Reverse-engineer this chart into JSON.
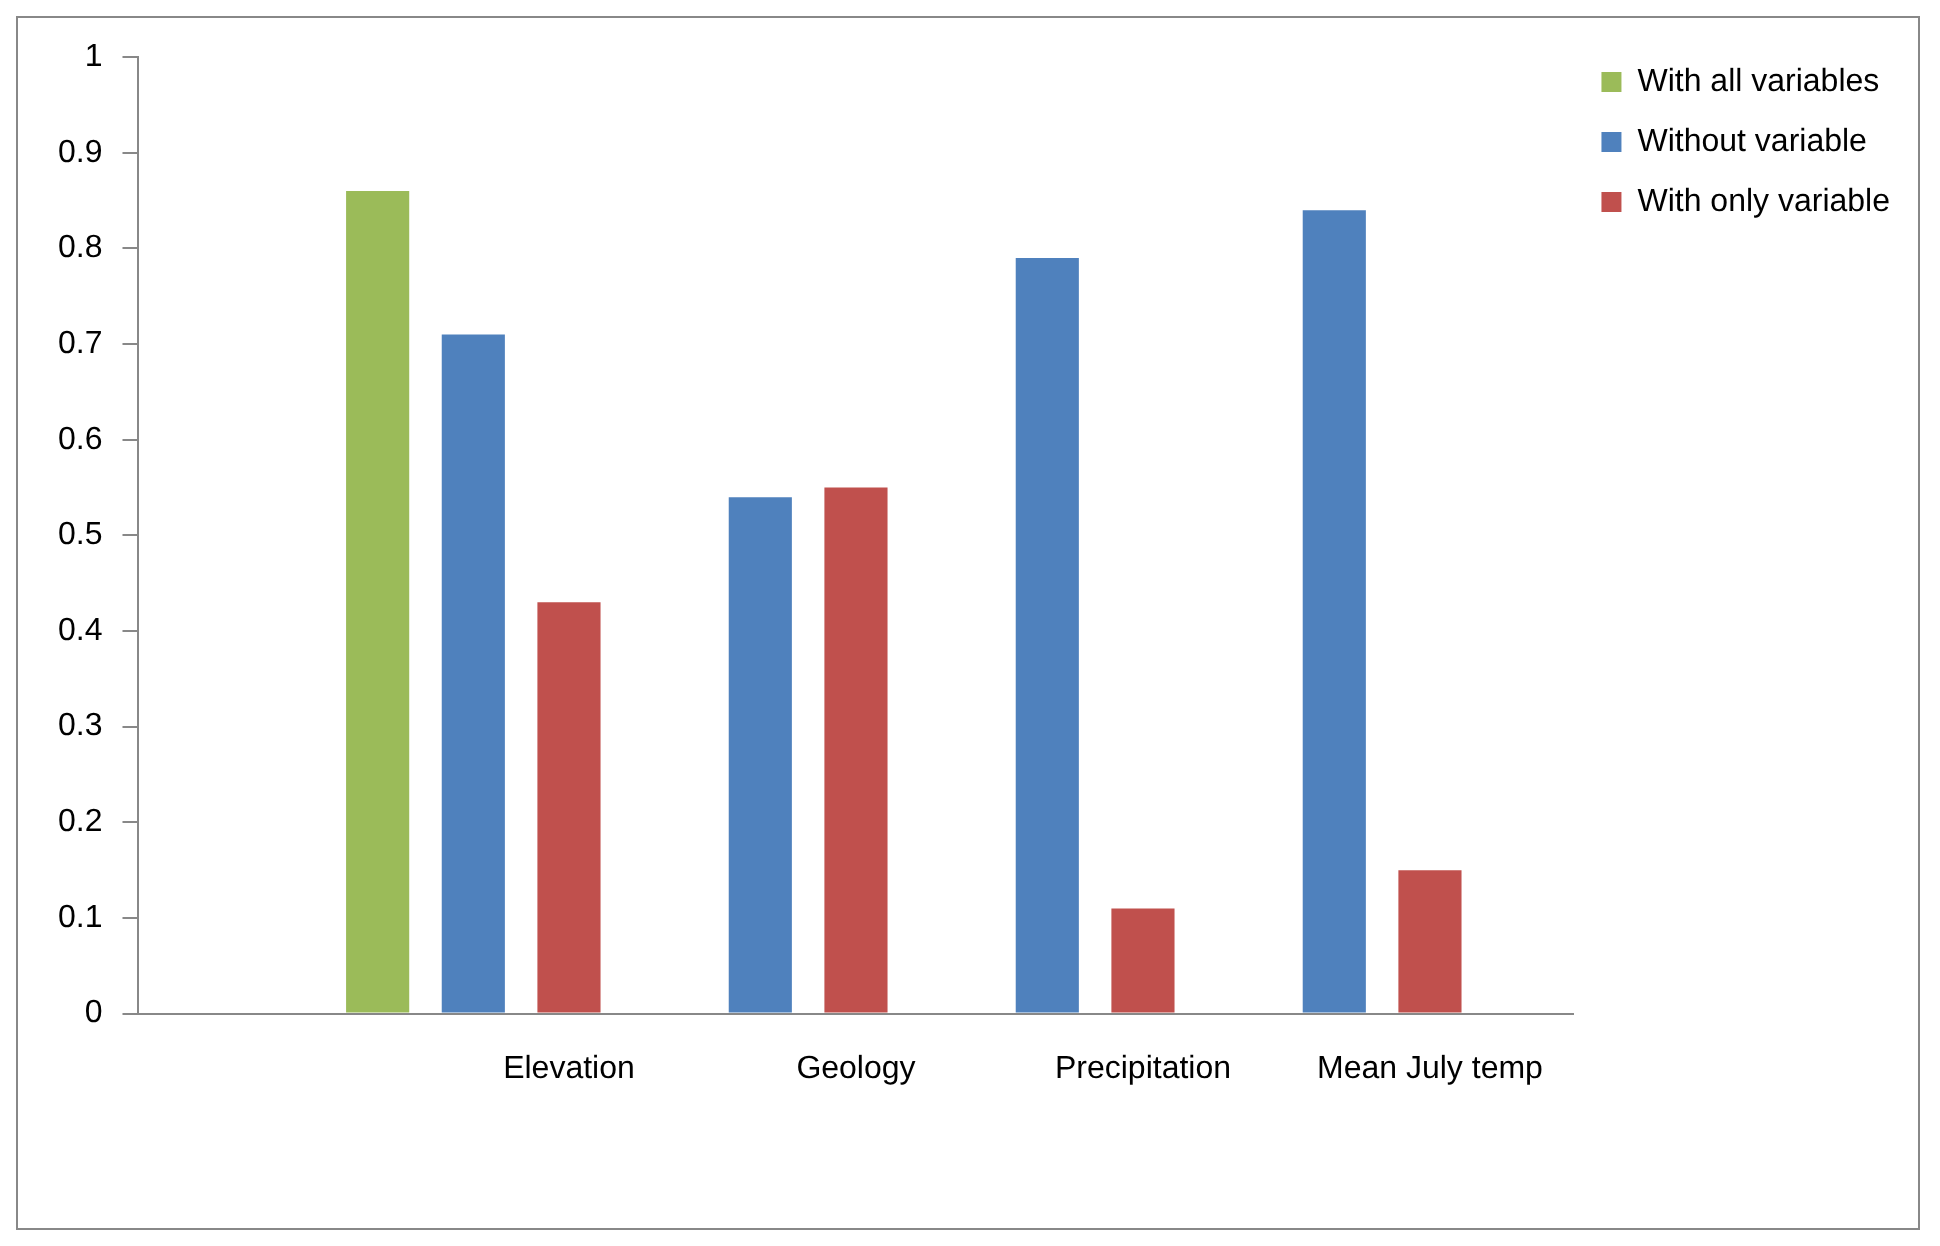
{
  "chart_data": {
    "type": "bar",
    "categories": [
      null,
      "Elevation",
      "Geology",
      "Precipitation",
      "Mean July temp"
    ],
    "series": [
      {
        "name": "Without variable",
        "color": "#4f81bd",
        "values": [
          null,
          0.71,
          0.54,
          0.79,
          0.84
        ]
      },
      {
        "name": "With only variable",
        "color": "#c0504d",
        "values": [
          null,
          0.43,
          0.55,
          0.11,
          0.15
        ]
      },
      {
        "name": "With all variables",
        "color": "#9bbb59",
        "values": [
          0.86,
          null,
          null,
          null,
          null
        ]
      }
    ],
    "ylim": [
      0,
      1
    ],
    "yticks": [
      0,
      0.1,
      0.2,
      0.3,
      0.4,
      0.5,
      0.6,
      0.7,
      0.8,
      0.9,
      1
    ],
    "grid": false,
    "legend": "top right"
  }
}
